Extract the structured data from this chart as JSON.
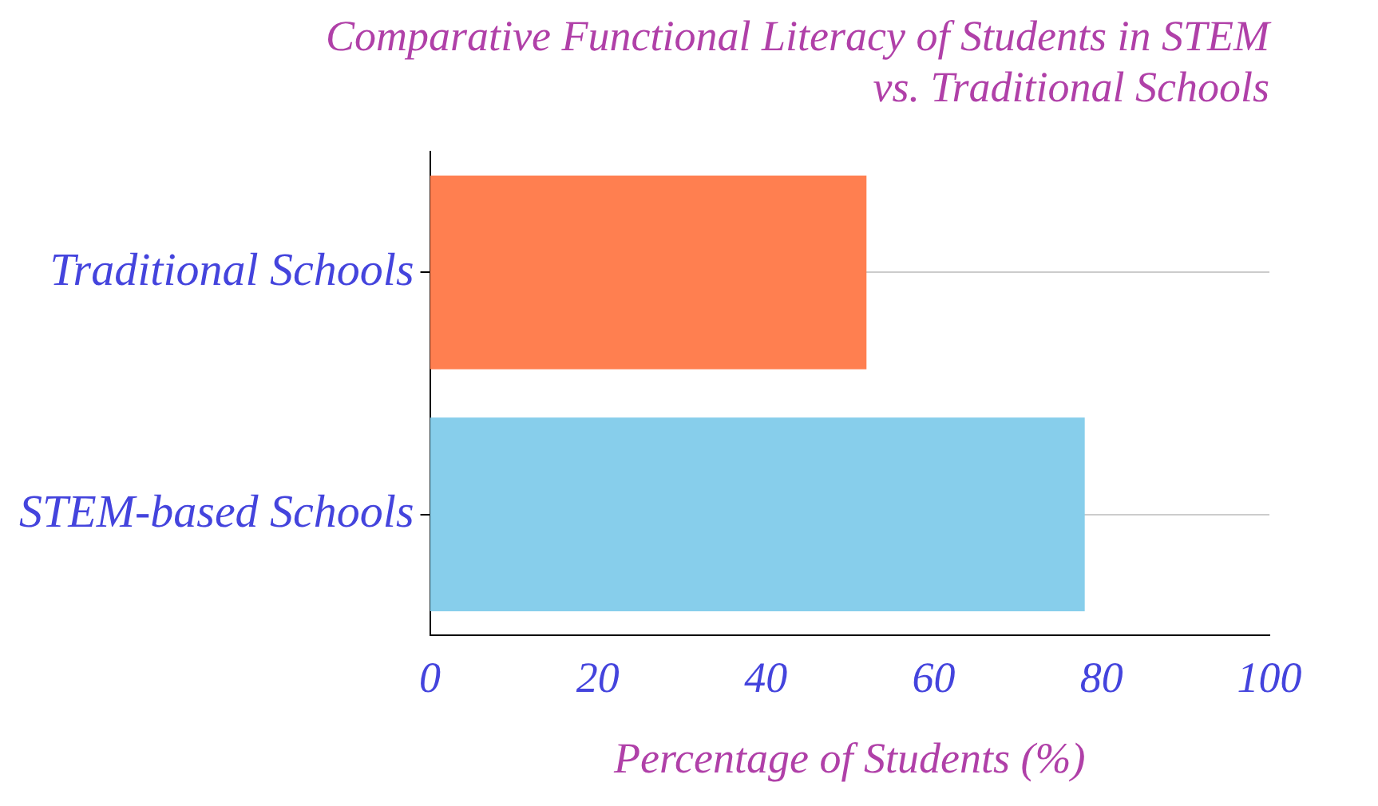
{
  "chart_data": {
    "type": "bar",
    "orientation": "horizontal",
    "title": "Comparative Functional Literacy of Students in STEM\nvs. Traditional Schools",
    "xlabel": "Percentage of Students (%)",
    "categories": [
      "Traditional Schools",
      "STEM-based Schools"
    ],
    "values": [
      52,
      78
    ],
    "colors": [
      "#ff7f50",
      "#87ceeb"
    ],
    "xlim": [
      0,
      100
    ],
    "xticks": [
      0,
      20,
      40,
      60,
      80,
      100
    ],
    "grid": "y",
    "legend": false
  }
}
